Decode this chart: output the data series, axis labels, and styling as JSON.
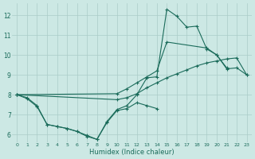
{
  "xlabel": "Humidex (Indice chaleur)",
  "bg_color": "#cce8e4",
  "grid_color": "#aaccc8",
  "line_color": "#1a6b5a",
  "xlim": [
    -0.5,
    23.5
  ],
  "ylim": [
    5.6,
    12.6
  ],
  "xticks": [
    0,
    1,
    2,
    3,
    4,
    5,
    6,
    7,
    8,
    9,
    10,
    11,
    12,
    13,
    14,
    15,
    16,
    17,
    18,
    19,
    20,
    21,
    22,
    23
  ],
  "yticks": [
    6,
    7,
    8,
    9,
    10,
    11,
    12
  ],
  "line1_x": [
    0,
    1,
    2,
    3,
    4,
    5,
    6,
    7,
    8,
    9,
    10,
    11,
    12,
    13,
    14,
    15,
    16,
    17,
    18,
    19,
    20,
    21
  ],
  "line1_y": [
    8.0,
    7.85,
    7.45,
    6.5,
    6.4,
    6.3,
    6.15,
    5.95,
    5.75,
    6.65,
    7.25,
    7.45,
    8.0,
    8.85,
    8.9,
    12.3,
    11.95,
    11.4,
    11.45,
    10.3,
    10.0,
    9.35
  ],
  "line2_x": [
    0,
    10,
    11,
    12,
    13,
    14,
    15,
    19,
    20,
    21,
    22,
    23
  ],
  "line2_y": [
    8.0,
    8.05,
    8.3,
    8.6,
    8.9,
    9.2,
    10.65,
    10.35,
    10.0,
    9.3,
    9.35,
    9.0
  ],
  "line3_x": [
    0,
    10,
    11,
    12,
    13,
    14,
    15,
    16,
    17,
    18,
    19,
    20,
    21,
    22,
    23
  ],
  "line3_y": [
    8.0,
    7.75,
    7.85,
    8.05,
    8.35,
    8.6,
    8.85,
    9.05,
    9.25,
    9.45,
    9.6,
    9.7,
    9.8,
    9.85,
    9.0
  ],
  "line4_x": [
    0,
    1,
    2,
    3,
    4,
    5,
    6,
    7,
    8,
    9,
    10,
    11,
    12,
    13,
    14
  ],
  "line4_y": [
    8.0,
    7.8,
    7.4,
    6.5,
    6.4,
    6.3,
    6.15,
    5.9,
    5.75,
    6.6,
    7.2,
    7.3,
    7.6,
    7.45,
    7.3
  ]
}
